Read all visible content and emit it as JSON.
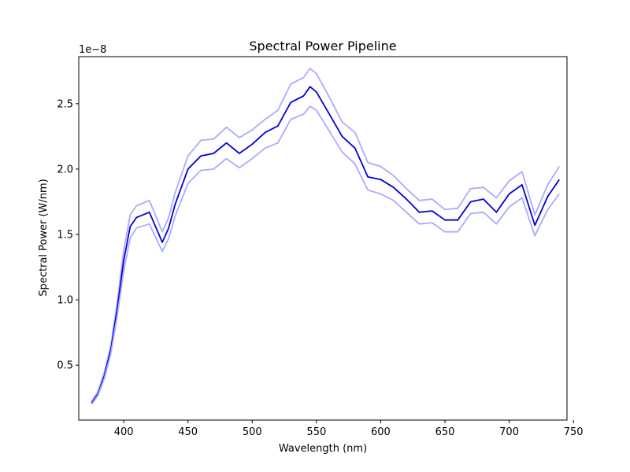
{
  "chart_data": {
    "type": "line",
    "title": "Spectral Power Pipeline",
    "xlabel": "Wavelength (nm)",
    "ylabel": "Spectral Power (W/nm)",
    "y_offset_text": "1e−8",
    "xlim": [
      365,
      745
    ],
    "ylim": [
      0.08,
      2.86
    ],
    "y_scale_factor": 1e-08,
    "x_ticks": [
      400,
      450,
      500,
      550,
      600,
      650,
      700,
      750
    ],
    "x_tick_labels": [
      "400",
      "450",
      "500",
      "550",
      "600",
      "650",
      "700",
      "750"
    ],
    "y_ticks": [
      0.5,
      1.0,
      1.5,
      2.0,
      2.5
    ],
    "y_tick_labels": [
      "0.5",
      "1.0",
      "1.5",
      "2.0",
      "2.5"
    ],
    "grid": false,
    "legend": "none",
    "x": [
      375,
      380,
      385,
      390,
      395,
      400,
      405,
      410,
      420,
      430,
      435,
      440,
      450,
      460,
      470,
      480,
      490,
      500,
      510,
      520,
      530,
      540,
      545,
      550,
      560,
      570,
      580,
      590,
      600,
      610,
      620,
      630,
      640,
      650,
      660,
      670,
      680,
      690,
      700,
      710,
      720,
      730,
      739
    ],
    "series": [
      {
        "color": "#aaaaff",
        "values": [
          0.22,
          0.3,
          0.45,
          0.65,
          0.98,
          1.38,
          1.65,
          1.72,
          1.76,
          1.52,
          1.63,
          1.82,
          2.1,
          2.22,
          2.23,
          2.32,
          2.24,
          2.3,
          2.38,
          2.45,
          2.65,
          2.7,
          2.77,
          2.73,
          2.55,
          2.36,
          2.28,
          2.05,
          2.02,
          1.95,
          1.85,
          1.76,
          1.77,
          1.69,
          1.7,
          1.85,
          1.86,
          1.78,
          1.91,
          1.98,
          1.65,
          1.88,
          2.02
        ]
      },
      {
        "color": "#0000dd",
        "values": [
          0.21,
          0.28,
          0.42,
          0.62,
          0.93,
          1.3,
          1.56,
          1.63,
          1.67,
          1.44,
          1.55,
          1.73,
          2.0,
          2.1,
          2.12,
          2.2,
          2.12,
          2.19,
          2.28,
          2.33,
          2.51,
          2.56,
          2.63,
          2.59,
          2.42,
          2.25,
          2.16,
          1.94,
          1.92,
          1.86,
          1.77,
          1.67,
          1.68,
          1.61,
          1.61,
          1.75,
          1.77,
          1.67,
          1.81,
          1.88,
          1.57,
          1.79,
          1.92
        ]
      },
      {
        "color": "#aaaaff",
        "values": [
          0.2,
          0.27,
          0.4,
          0.59,
          0.88,
          1.22,
          1.47,
          1.55,
          1.58,
          1.37,
          1.47,
          1.64,
          1.89,
          1.99,
          2.0,
          2.08,
          2.01,
          2.08,
          2.16,
          2.2,
          2.38,
          2.42,
          2.48,
          2.45,
          2.29,
          2.13,
          2.04,
          1.84,
          1.81,
          1.76,
          1.67,
          1.58,
          1.59,
          1.52,
          1.52,
          1.66,
          1.67,
          1.58,
          1.71,
          1.78,
          1.49,
          1.69,
          1.81
        ]
      }
    ]
  }
}
